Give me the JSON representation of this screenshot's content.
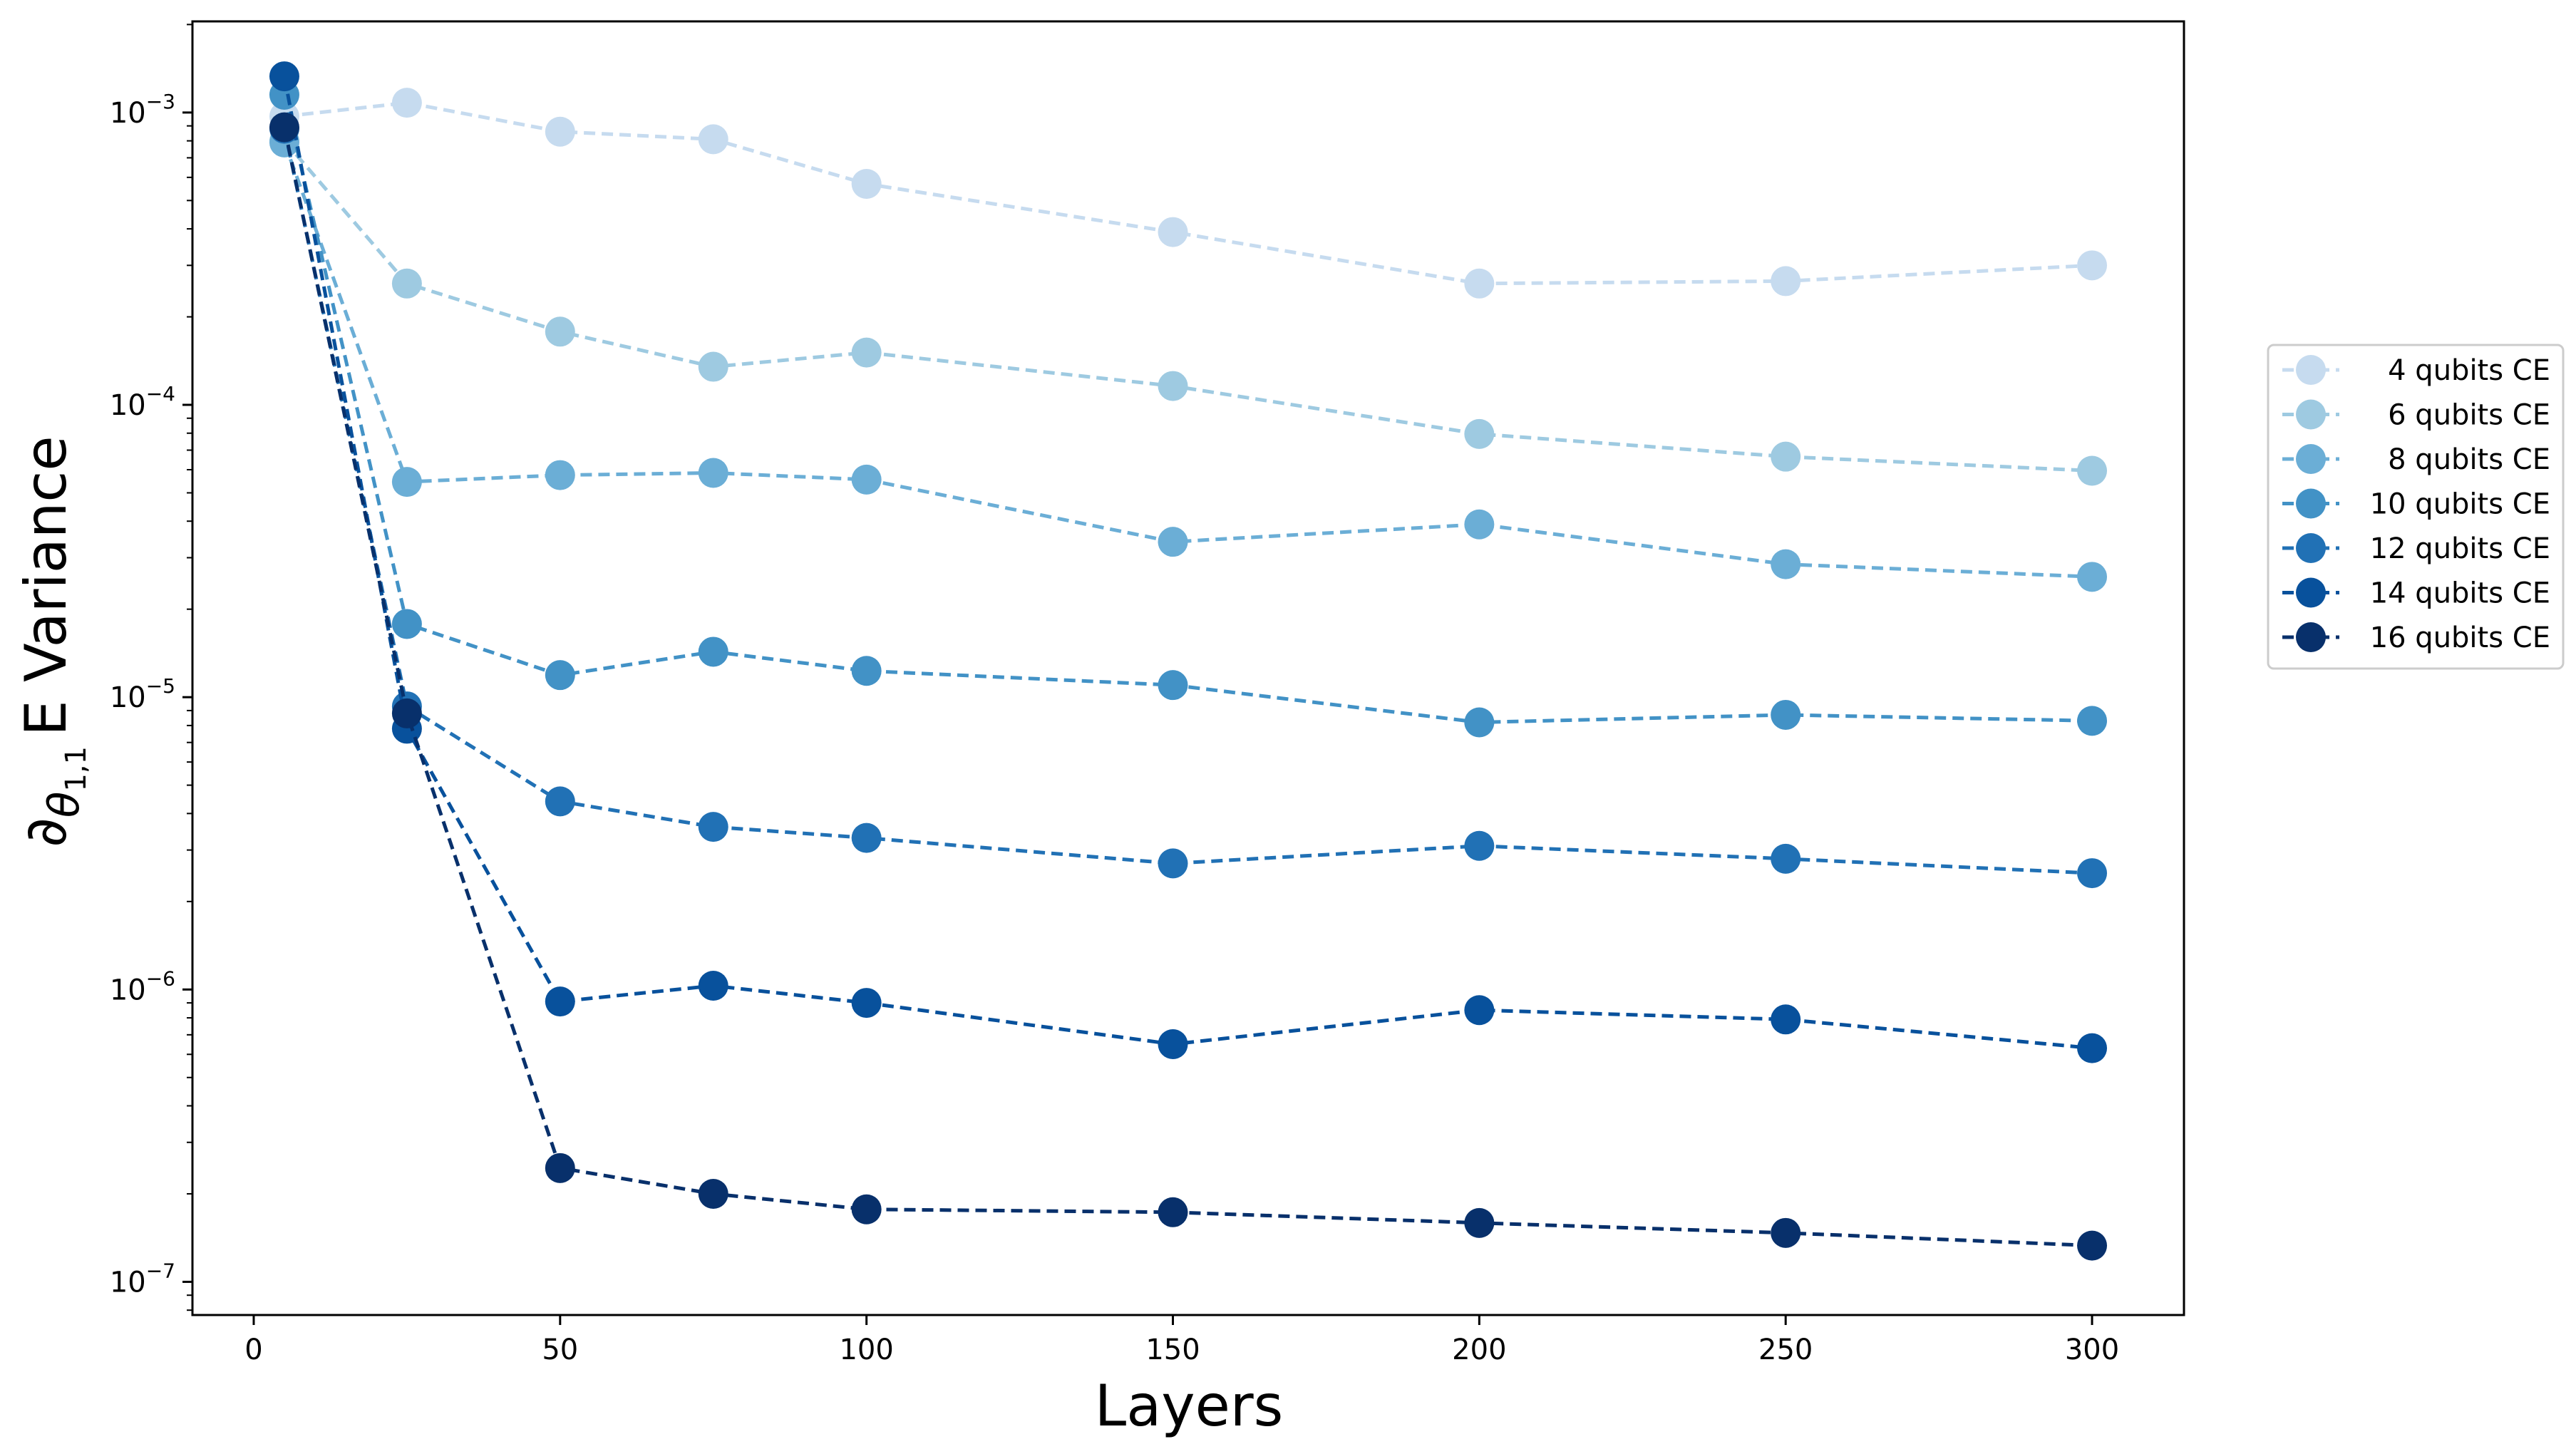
{
  "chart_data": {
    "type": "line",
    "xlabel": "Layers",
    "ylabel_text": "E Variance",
    "ylabel_symbol": "∂",
    "ylabel_theta": "θ",
    "ylabel_subscript": "1,1",
    "xlim": [
      -10,
      315
    ],
    "ylim": [
      7.7e-08,
      0.00205
    ],
    "yscale": "log",
    "grid": false,
    "legend_position": "right, outside plot",
    "x_ticks": [
      0,
      50,
      100,
      150,
      200,
      250,
      300
    ],
    "x_tick_labels": [
      "0",
      "50",
      "100",
      "150",
      "200",
      "250",
      "300"
    ],
    "y_ticks": [
      {
        "value": 0.001,
        "base": "10",
        "exp": "−3"
      },
      {
        "value": 0.0001,
        "base": "10",
        "exp": "−4"
      },
      {
        "value": 1e-05,
        "base": "10",
        "exp": "−5"
      },
      {
        "value": 1e-06,
        "base": "10",
        "exp": "−6"
      },
      {
        "value": 1e-07,
        "base": "10",
        "exp": "−7"
      }
    ],
    "x": [
      5,
      25,
      50,
      75,
      100,
      150,
      200,
      250,
      300
    ],
    "series": [
      {
        "name": "4 qubits CE",
        "color": "#c6dbef",
        "values": [
          0.00097,
          0.00108,
          0.00086,
          0.00081,
          0.00057,
          0.00039,
          0.00026,
          0.000265,
          0.0003
        ]
      },
      {
        "name": "6 qubits CE",
        "color": "#9ecae1",
        "values": [
          0.0008,
          0.00026,
          0.000178,
          0.000135,
          0.000151,
          0.000116,
          7.95e-05,
          6.65e-05,
          5.95e-05
        ]
      },
      {
        "name": "8 qubits CE",
        "color": "#6baed6",
        "values": [
          0.00079,
          5.45e-05,
          5.75e-05,
          5.85e-05,
          5.55e-05,
          3.4e-05,
          3.9e-05,
          2.85e-05,
          2.58e-05
        ]
      },
      {
        "name": "10 qubits CE",
        "color": "#4292c6",
        "values": [
          0.00115,
          1.78e-05,
          1.19e-05,
          1.43e-05,
          1.23e-05,
          1.1e-05,
          8.2e-06,
          8.7e-06,
          8.3e-06
        ]
      },
      {
        "name": "12 qubits CE",
        "color": "#2171b5",
        "values": [
          0.00088,
          9.3e-06,
          4.4e-06,
          3.6e-06,
          3.3e-06,
          2.7e-06,
          3.1e-06,
          2.8e-06,
          2.5e-06
        ]
      },
      {
        "name": "14 qubits CE",
        "color": "#08519c",
        "values": [
          0.00133,
          7.8e-06,
          9.1e-07,
          1.03e-06,
          9e-07,
          6.5e-07,
          8.5e-07,
          7.9e-07,
          6.3e-07
        ]
      },
      {
        "name": "16 qubits CE",
        "color": "#08306b",
        "values": [
          0.00089,
          8.8e-06,
          2.45e-07,
          2e-07,
          1.77e-07,
          1.73e-07,
          1.59e-07,
          1.47e-07,
          1.33e-07
        ]
      }
    ]
  }
}
